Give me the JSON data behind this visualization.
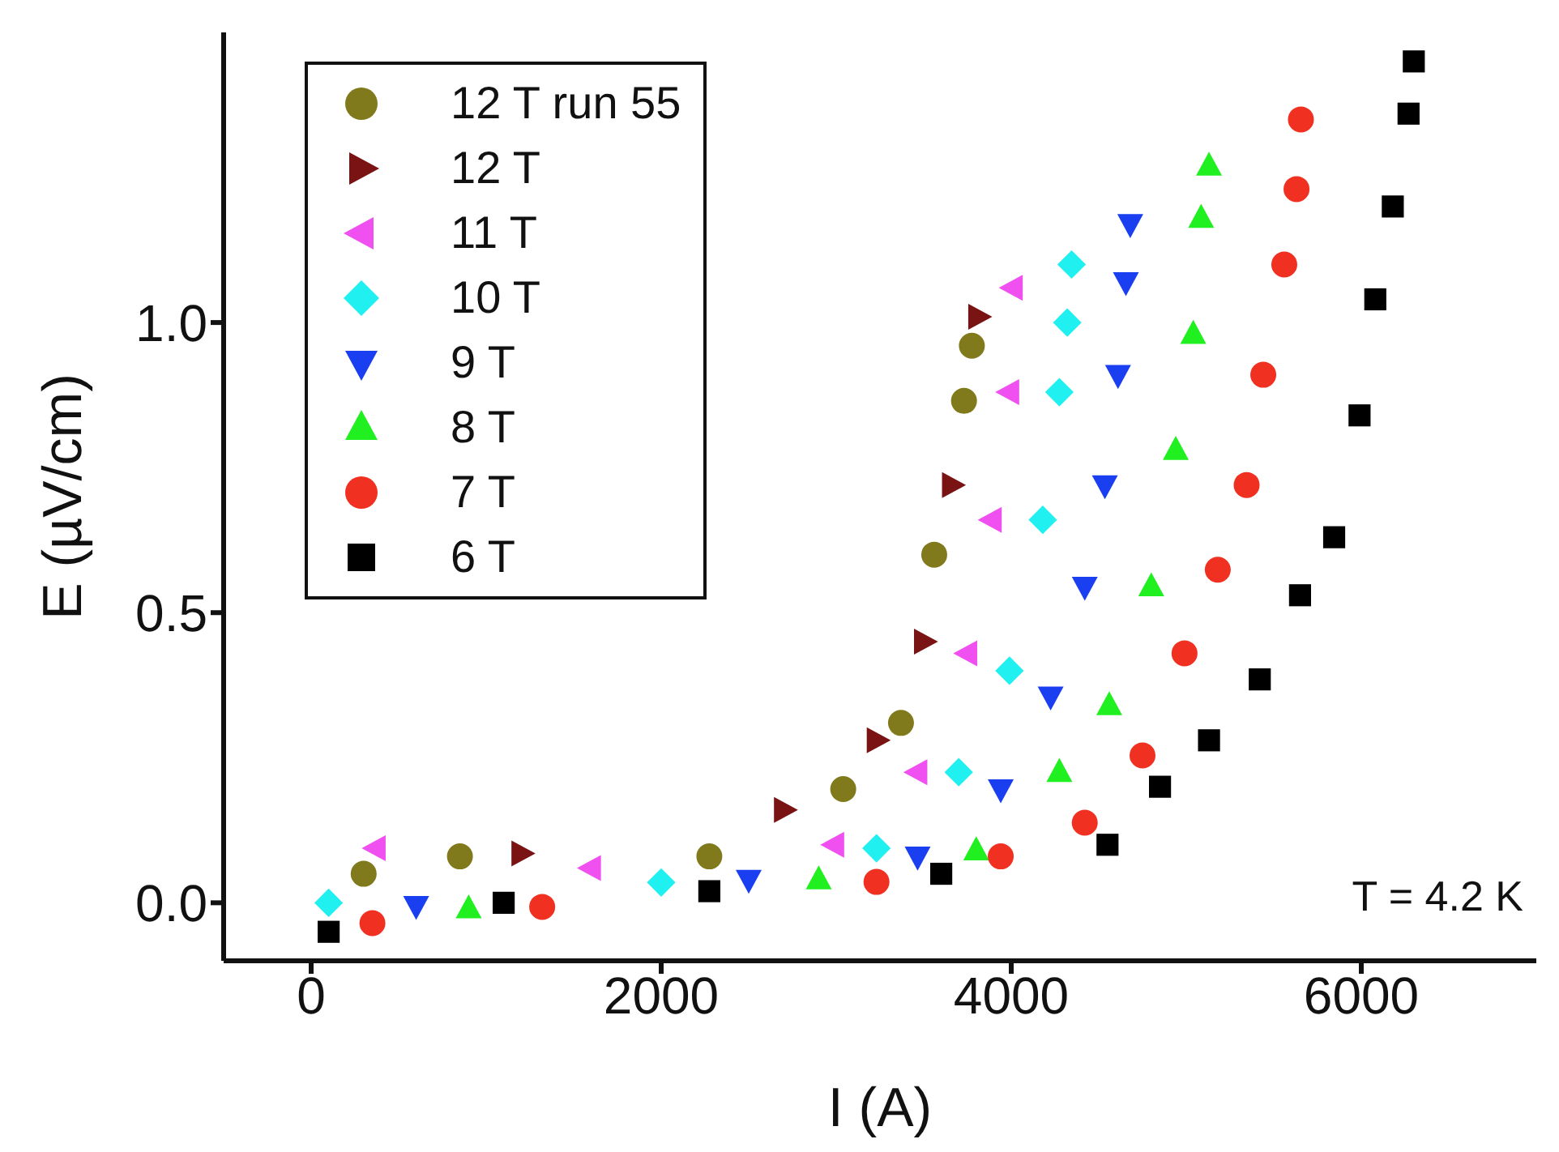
{
  "chart_data": {
    "type": "scatter",
    "xlabel": "I (A)",
    "ylabel": "E (µV/cm)",
    "xlim": [
      -500,
      7000
    ],
    "ylim": [
      -0.1,
      1.5
    ],
    "xticks": [
      0,
      2000,
      4000,
      6000
    ],
    "yticks": [
      {
        "value": 0,
        "label": "0.0"
      },
      {
        "value": 0.5,
        "label": "0.5"
      },
      {
        "value": 1,
        "label": "1.0"
      }
    ],
    "grid": false,
    "legend": "top left",
    "annotations": [
      "T = 4.2 K"
    ],
    "series": [
      {
        "name": "12 T run 55",
        "color": "#817a1c",
        "marker": "circle",
        "x": [
          300,
          850,
          2275,
          3040,
          3370,
          3560,
          3730,
          3775
        ],
        "values": [
          0.05,
          0.08,
          0.08,
          0.196,
          0.31,
          0.6,
          0.865,
          0.96
        ]
      },
      {
        "name": "12 T",
        "color": "#7a1414",
        "marker": "triangle-right",
        "x": [
          1200,
          2700,
          3230,
          3500,
          3660,
          3810
        ],
        "values": [
          0.085,
          0.16,
          0.28,
          0.45,
          0.72,
          1.01
        ]
      },
      {
        "name": "11 T",
        "color": "#f050f0",
        "marker": "triangle-left",
        "x": [
          370,
          1600,
          2990,
          3465,
          3750,
          3890,
          3990,
          4010
        ],
        "values": [
          0.094,
          0.06,
          0.1,
          0.225,
          0.43,
          0.66,
          0.88,
          1.06
        ]
      },
      {
        "name": "10 T",
        "color": "#20f0f0",
        "marker": "diamond",
        "x": [
          100,
          2000,
          3230,
          3700,
          3990,
          4180,
          4275,
          4320,
          4345
        ],
        "values": [
          0.0,
          0.035,
          0.094,
          0.225,
          0.4,
          0.66,
          0.88,
          1.0,
          1.1
        ]
      },
      {
        "name": "9 T",
        "color": "#1a3ff0",
        "marker": "triangle-down",
        "x": [
          600,
          2500,
          3465,
          3940,
          4225,
          4420,
          4535,
          4610,
          4655,
          4680
        ],
        "values": [
          -0.005,
          0.04,
          0.08,
          0.196,
          0.356,
          0.545,
          0.72,
          0.91,
          1.07,
          1.17
        ]
      },
      {
        "name": "8 T",
        "color": "#20f020",
        "marker": "triangle",
        "x": [
          900,
          2900,
          3800,
          4275,
          4560,
          4800,
          4940,
          5040,
          5085,
          5130
        ],
        "values": [
          -0.01,
          0.04,
          0.09,
          0.225,
          0.34,
          0.545,
          0.78,
          0.98,
          1.18,
          1.27
        ]
      },
      {
        "name": "7 T",
        "color": "#f03020",
        "marker": "circle",
        "x": [
          350,
          1320,
          3230,
          3940,
          4420,
          4750,
          4990,
          5180,
          5345,
          5440,
          5560,
          5630,
          5655
        ],
        "values": [
          -0.035,
          -0.007,
          0.036,
          0.08,
          0.138,
          0.254,
          0.43,
          0.574,
          0.72,
          0.91,
          1.1,
          1.23,
          1.35
        ]
      },
      {
        "name": "6 T",
        "color": "#000000",
        "marker": "square",
        "x": [
          100,
          1100,
          2275,
          3600,
          4550,
          4850,
          5130,
          5420,
          5650,
          5845,
          5990,
          6080,
          6180,
          6270,
          6300
        ],
        "values": [
          -0.05,
          0.0,
          0.02,
          0.05,
          0.1,
          0.2,
          0.28,
          0.385,
          0.53,
          0.63,
          0.84,
          1.04,
          1.2,
          1.36,
          1.45
        ]
      }
    ]
  }
}
